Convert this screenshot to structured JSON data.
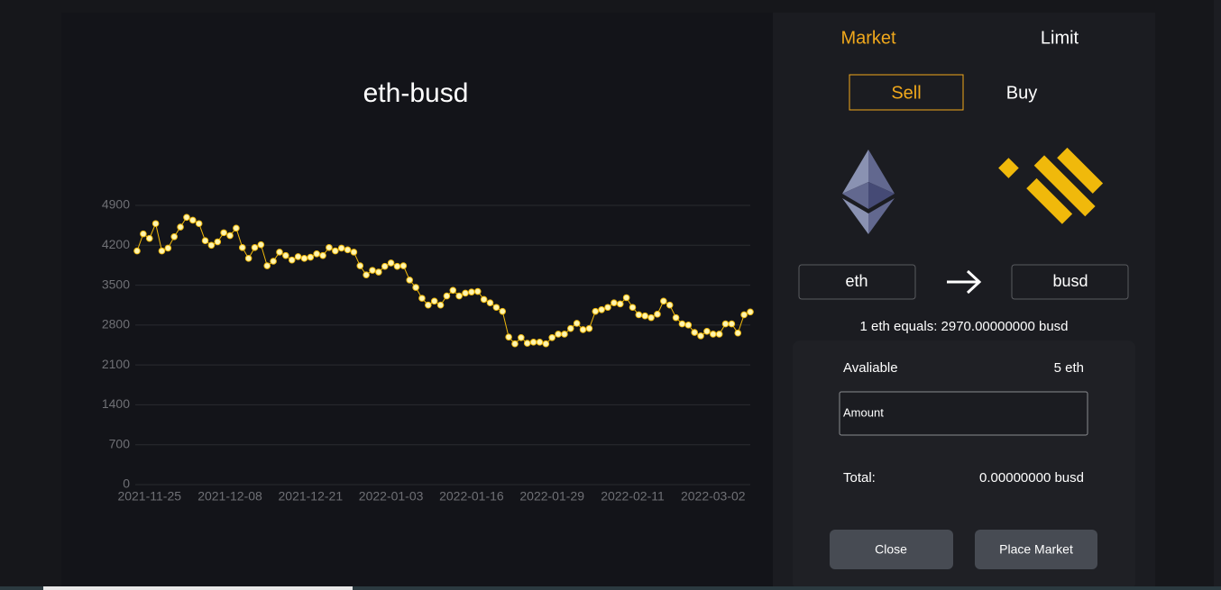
{
  "chart_data": {
    "type": "line",
    "title": "eth-busd",
    "categories": [
      null,
      null,
      "2021-11-25",
      null,
      null,
      null,
      null,
      null,
      null,
      null,
      null,
      null,
      null,
      null,
      null,
      "2021-12-08",
      null,
      null,
      null,
      null,
      null,
      null,
      null,
      null,
      null,
      null,
      null,
      null,
      "2021-12-21",
      null,
      null,
      null,
      null,
      null,
      null,
      null,
      null,
      null,
      null,
      null,
      null,
      "2022-01-03",
      null,
      null,
      null,
      null,
      null,
      null,
      null,
      null,
      null,
      null,
      null,
      null,
      "2022-01-16",
      null,
      null,
      null,
      null,
      null,
      null,
      null,
      null,
      null,
      null,
      null,
      null,
      "2022-01-29",
      null,
      null,
      null,
      null,
      null,
      null,
      null,
      null,
      null,
      null,
      null,
      null,
      "2022-02-11",
      null,
      null,
      null,
      null,
      null,
      null,
      null,
      null,
      null,
      null,
      null,
      null,
      "2022-03-02",
      null,
      null,
      null,
      null,
      null,
      null
    ],
    "values": [
      4100,
      4400,
      4320,
      4580,
      4100,
      4150,
      4350,
      4520,
      4690,
      4640,
      4580,
      4280,
      4200,
      4260,
      4420,
      4370,
      4500,
      4160,
      3970,
      4160,
      4210,
      3840,
      3920,
      4080,
      4020,
      3940,
      4000,
      3970,
      3990,
      4050,
      4020,
      4160,
      4100,
      4150,
      4120,
      4080,
      3840,
      3680,
      3760,
      3730,
      3830,
      3890,
      3830,
      3840,
      3590,
      3460,
      3270,
      3150,
      3220,
      3150,
      3310,
      3410,
      3310,
      3360,
      3380,
      3390,
      3250,
      3190,
      3110,
      3040,
      2590,
      2470,
      2580,
      2480,
      2500,
      2500,
      2470,
      2580,
      2640,
      2640,
      2740,
      2830,
      2720,
      2740,
      3040,
      3070,
      3110,
      3190,
      3170,
      3280,
      3110,
      2980,
      2960,
      2930,
      2990,
      3220,
      3150,
      2930,
      2820,
      2800,
      2670,
      2610,
      2690,
      2640,
      2640,
      2820,
      2820,
      2660,
      2980,
      3030
    ],
    "color": "#f0b90b",
    "ylim": [
      0,
      4900
    ],
    "yticks": [
      0,
      700,
      1400,
      2100,
      2800,
      3500,
      4200,
      4900
    ],
    "grid": true
  },
  "panel": {
    "tabs": [
      "Market",
      "Limit"
    ],
    "sides": [
      "Sell",
      "Buy"
    ],
    "from": "eth",
    "to": "busd",
    "rate": "1 eth equals: 2970.00000000 busd",
    "available_label": "Avaliable",
    "available_value": "5 eth",
    "amount_placeholder": "Amount",
    "total_label": "Total:",
    "total_value": "0.00000000 busd",
    "buttons": [
      "Close",
      "Place Market"
    ]
  }
}
